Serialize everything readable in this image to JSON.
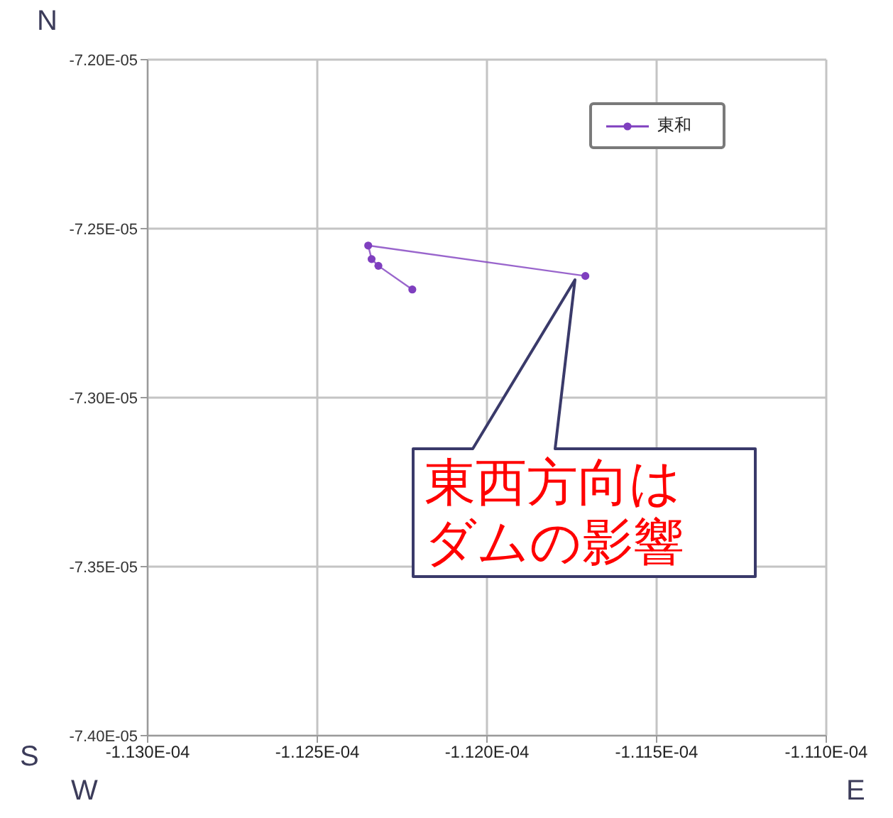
{
  "chart_data": {
    "type": "line",
    "x": [
      -0.00011222,
      -0.00011232,
      -0.00011234,
      -0.00011235,
      -0.00011171
    ],
    "series": [
      {
        "name": "東和",
        "color": "#7f3fbf",
        "values": [
          -7.268e-05,
          -7.261e-05,
          -7.259e-05,
          -7.255e-05,
          -7.264e-05
        ]
      }
    ],
    "xlim": [
      -0.000113,
      -0.000111
    ],
    "xticks": [
      {
        "value": -0.000113,
        "label": "-1.130E-04"
      },
      {
        "value": -0.0001125,
        "label": "-1.125E-04"
      },
      {
        "value": -0.000112,
        "label": "-1.120E-04"
      },
      {
        "value": -0.0001115,
        "label": "-1.115E-04"
      },
      {
        "value": -0.000111,
        "label": "-1.110E-04"
      }
    ],
    "ylim": [
      -7.4e-05,
      -7.2e-05
    ],
    "yticks": [
      {
        "value": -7.4e-05,
        "label": "-7.40E-05"
      },
      {
        "value": -7.35e-05,
        "label": "-7.35E-05"
      },
      {
        "value": -7.3e-05,
        "label": "-7.30E-05"
      },
      {
        "value": -7.25e-05,
        "label": "-7.25E-05"
      },
      {
        "value": -7.2e-05,
        "label": "-7.20E-05"
      }
    ],
    "grid": true,
    "legend": "top right",
    "marker": "circle",
    "line_style": "solid",
    "annotations": [
      "N",
      "S",
      "W",
      "E",
      "東西方向はダムの影響"
    ]
  }
}
